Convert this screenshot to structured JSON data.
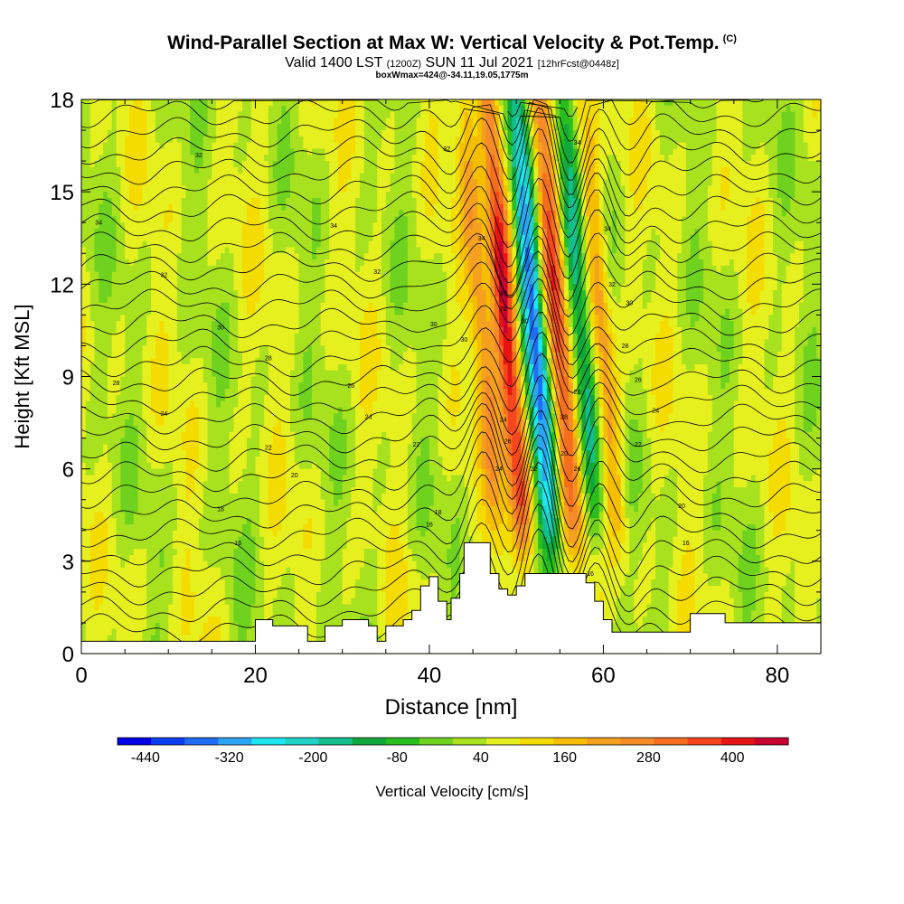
{
  "title": {
    "main": "Wind-Parallel Section at Max W: Vertical Velocity & Pot.Temp.",
    "copyright": "(C)",
    "valid": "Valid 1400 LST",
    "utc": "(1200Z)",
    "date": "SUN 11 Jul 2021",
    "forecast": "[12hrFcst@0448z]",
    "box": "boxWmax=424@-34.11,19.05,1775m"
  },
  "chart_data": {
    "type": "heatmap",
    "xlabel": "Distance [nm]",
    "ylabel": "Height [Kft MSL]",
    "xlim": [
      0,
      85
    ],
    "ylim": [
      0,
      18
    ],
    "xticks": [
      "0",
      "20",
      "40",
      "60",
      "80"
    ],
    "yticks": [
      "0",
      "3",
      "6",
      "9",
      "12",
      "15",
      "18"
    ],
    "colorbar": {
      "label": "Vertical Velocity [cm/s]",
      "range": [
        -480,
        480
      ],
      "tick_labels": [
        "-440",
        "-320",
        "-200",
        "-80",
        "40",
        "160",
        "280",
        "400"
      ],
      "colors": [
        "#0000e6",
        "#0a3cf0",
        "#1e6ef5",
        "#2ba5f2",
        "#1ee6f0",
        "#1ed2c8",
        "#14be8c",
        "#10a83c",
        "#28be1e",
        "#6ed21e",
        "#a8e11e",
        "#e6f01e",
        "#f5dc00",
        "#f5be00",
        "#f5a01e",
        "#f58c28",
        "#f56e1e",
        "#f5461e",
        "#e61414",
        "#c80032"
      ]
    },
    "features": {
      "velocity_bands": [
        {
          "x_center": 46.5,
          "w_peak": 180
        },
        {
          "x_center": 49.3,
          "w_peak": 424
        },
        {
          "x_center": 52.5,
          "w_peak": -420
        },
        {
          "x_center": 55.2,
          "w_peak": 300
        },
        {
          "x_center": 57.8,
          "w_peak": -240
        },
        {
          "x_center": 60.2,
          "w_peak": 200
        }
      ],
      "terrain_kft": [
        [
          0,
          0.4
        ],
        [
          20,
          0.4
        ],
        [
          20,
          1.1
        ],
        [
          22,
          1.1
        ],
        [
          22,
          0.9
        ],
        [
          26,
          0.9
        ],
        [
          26,
          0.4
        ],
        [
          28,
          0.4
        ],
        [
          28,
          0.9
        ],
        [
          30,
          0.9
        ],
        [
          30,
          1.1
        ],
        [
          33,
          1.1
        ],
        [
          33,
          0.9
        ],
        [
          34,
          0.9
        ],
        [
          34,
          0.4
        ],
        [
          35,
          0.4
        ],
        [
          35,
          0.9
        ],
        [
          37,
          0.9
        ],
        [
          37,
          1.1
        ],
        [
          38,
          1.1
        ],
        [
          38,
          1.4
        ],
        [
          39,
          1.4
        ],
        [
          39,
          2.2
        ],
        [
          40,
          2.2
        ],
        [
          40,
          2.5
        ],
        [
          41,
          2.5
        ],
        [
          41,
          1.7
        ],
        [
          42,
          1.7
        ],
        [
          42,
          1.1
        ],
        [
          42.5,
          1.1
        ],
        [
          42.5,
          1.8
        ],
        [
          43.5,
          1.8
        ],
        [
          43.5,
          2.6
        ],
        [
          44,
          2.6
        ],
        [
          44,
          3.6
        ],
        [
          47,
          3.6
        ],
        [
          47,
          2.6
        ],
        [
          48,
          2.6
        ],
        [
          48,
          2.1
        ],
        [
          49,
          2.1
        ],
        [
          49,
          1.9
        ],
        [
          50,
          1.9
        ],
        [
          50,
          2.2
        ],
        [
          51,
          2.2
        ],
        [
          51,
          2.6
        ],
        [
          58,
          2.6
        ],
        [
          58,
          2.3
        ],
        [
          59,
          2.3
        ],
        [
          59,
          1.7
        ],
        [
          60,
          1.7
        ],
        [
          60,
          1.1
        ],
        [
          61,
          1.1
        ],
        [
          61,
          0.7
        ],
        [
          70,
          0.7
        ],
        [
          70,
          1.3
        ],
        [
          74,
          1.3
        ],
        [
          74,
          1.0
        ],
        [
          85,
          1.0
        ],
        [
          85,
          1.3
        ]
      ],
      "isentrope_labels": [
        {
          "text": "34",
          "x": 2.0,
          "y": 14.0
        },
        {
          "text": "34",
          "x": 29.0,
          "y": 13.9
        },
        {
          "text": "32",
          "x": 13.5,
          "y": 16.2
        },
        {
          "text": "32",
          "x": 42.0,
          "y": 16.4
        },
        {
          "text": "32",
          "x": 9.5,
          "y": 12.3
        },
        {
          "text": "32",
          "x": 34.0,
          "y": 12.4
        },
        {
          "text": "30",
          "x": 16.0,
          "y": 10.6
        },
        {
          "text": "30",
          "x": 40.5,
          "y": 10.7
        },
        {
          "text": "28",
          "x": 21.5,
          "y": 9.6
        },
        {
          "text": "28",
          "x": 4.0,
          "y": 8.8
        },
        {
          "text": "26",
          "x": 31.0,
          "y": 8.7
        },
        {
          "text": "24",
          "x": 9.5,
          "y": 7.8
        },
        {
          "text": "24",
          "x": 33.0,
          "y": 7.7
        },
        {
          "text": "22",
          "x": 21.5,
          "y": 6.7
        },
        {
          "text": "22",
          "x": 38.5,
          "y": 6.8
        },
        {
          "text": "20",
          "x": 24.5,
          "y": 5.8
        },
        {
          "text": "18",
          "x": 16.0,
          "y": 4.7
        },
        {
          "text": "18",
          "x": 41.0,
          "y": 4.6
        },
        {
          "text": "16",
          "x": 18.0,
          "y": 3.6
        },
        {
          "text": "16",
          "x": 40.0,
          "y": 4.2
        },
        {
          "text": "34",
          "x": 46.0,
          "y": 13.5
        },
        {
          "text": "34",
          "x": 57.0,
          "y": 16.6
        },
        {
          "text": "34",
          "x": 60.5,
          "y": 13.8
        },
        {
          "text": "32",
          "x": 61.0,
          "y": 12.0
        },
        {
          "text": "30",
          "x": 63.0,
          "y": 11.4
        },
        {
          "text": "28",
          "x": 62.5,
          "y": 10.0
        },
        {
          "text": "26",
          "x": 64.0,
          "y": 8.9
        },
        {
          "text": "24",
          "x": 66.0,
          "y": 7.9
        },
        {
          "text": "22",
          "x": 64.0,
          "y": 6.8
        },
        {
          "text": "20",
          "x": 69.0,
          "y": 4.8
        },
        {
          "text": "16",
          "x": 69.5,
          "y": 3.6
        },
        {
          "text": "16",
          "x": 58.5,
          "y": 2.6
        },
        {
          "text": "30",
          "x": 48.5,
          "y": 11.7
        },
        {
          "text": "28",
          "x": 48.5,
          "y": 11.2
        },
        {
          "text": "30",
          "x": 51.0,
          "y": 10.8
        },
        {
          "text": "24",
          "x": 48.5,
          "y": 7.6
        },
        {
          "text": "26",
          "x": 49.0,
          "y": 6.9
        },
        {
          "text": "24",
          "x": 48.0,
          "y": 6.0
        },
        {
          "text": "22",
          "x": 52.0,
          "y": 6.0
        },
        {
          "text": "20",
          "x": 55.5,
          "y": 6.5
        },
        {
          "text": "26",
          "x": 57.0,
          "y": 6.0
        },
        {
          "text": "28",
          "x": 57.0,
          "y": 8.5
        },
        {
          "text": "28",
          "x": 55.5,
          "y": 7.7
        },
        {
          "text": "30",
          "x": 44.0,
          "y": 10.2
        }
      ]
    }
  }
}
